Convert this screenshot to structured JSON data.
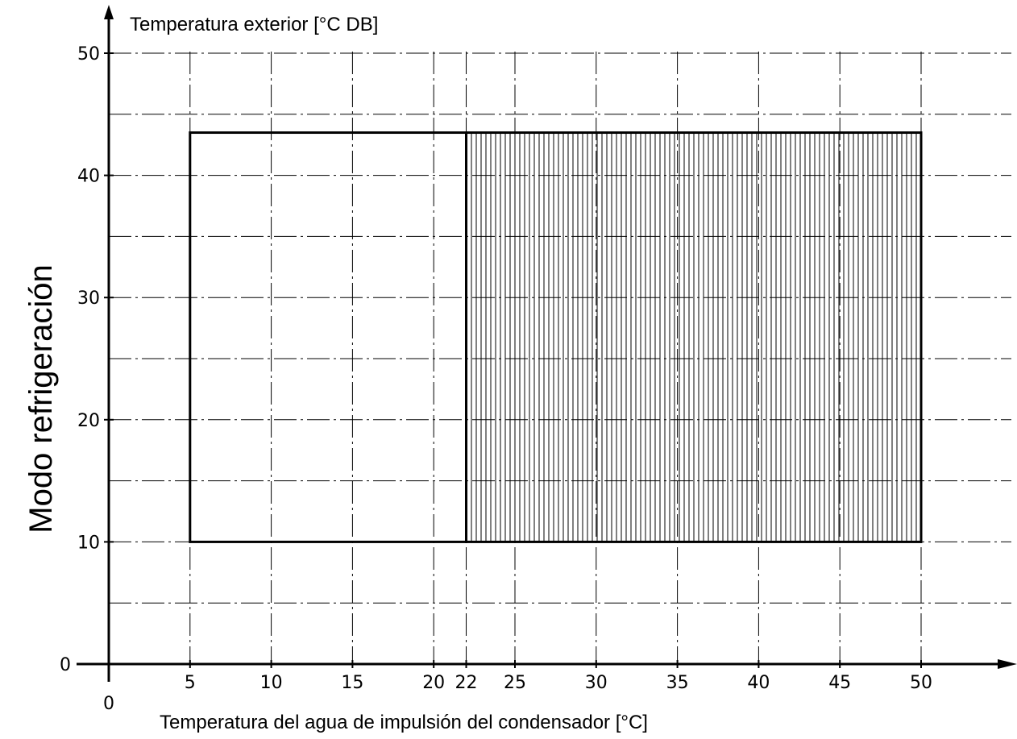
{
  "chart_data": {
    "type": "area",
    "side_title": "Modo refrigeración",
    "ylabel": "Temperatura exterior [°C DB]",
    "xlabel": "Temperatura del agua de impulsión del condensador [°C]",
    "xlim": [
      0,
      55
    ],
    "ylim": [
      0,
      50
    ],
    "x_ticks": [
      "0",
      "5",
      "10",
      "15",
      "20",
      "22",
      "25",
      "30",
      "35",
      "40",
      "45",
      "50"
    ],
    "y_ticks": [
      "0",
      "10",
      "20",
      "30",
      "40",
      "50"
    ],
    "grid": true,
    "regions": [
      {
        "x": [
          5,
          22
        ],
        "y": [
          10,
          43.5
        ],
        "fill": "none"
      },
      {
        "x": [
          22,
          50
        ],
        "y": [
          10,
          43.5
        ],
        "fill": "hatched"
      }
    ]
  }
}
